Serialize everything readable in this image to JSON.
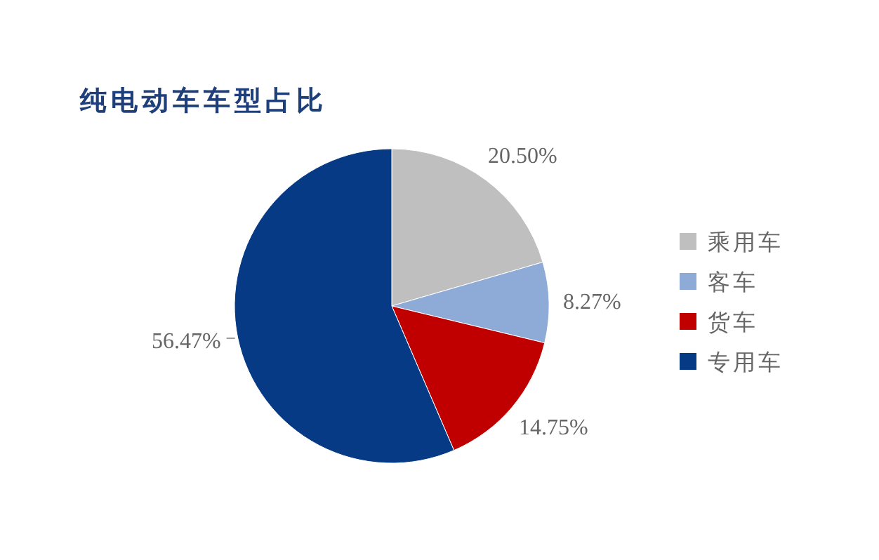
{
  "chart_data": {
    "type": "pie",
    "title": "纯电动车车型占比",
    "categories": [
      "乘用车",
      "客车",
      "货车",
      "专用车"
    ],
    "values": [
      20.5,
      8.27,
      14.75,
      56.47
    ],
    "colors": [
      "#bfbfbf",
      "#8eaad6",
      "#c00000",
      "#063a85"
    ],
    "value_labels": [
      "20.50%",
      "8.27%",
      "14.75%",
      "56.47%"
    ],
    "legend": "right"
  }
}
